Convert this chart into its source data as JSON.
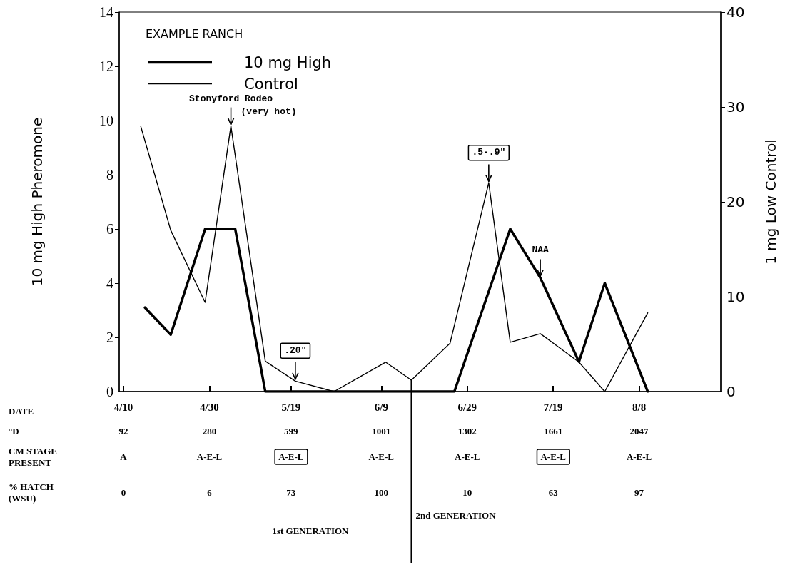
{
  "chart_data": {
    "type": "line",
    "title": "EXAMPLE RANCH",
    "ylabel": "10 mg High Pheromone",
    "y2label": "1 mg Low Control",
    "xlim": [
      "--04-09",
      "--08-27"
    ],
    "xticks": [
      {
        "value": "--04-10",
        "label": "4/10"
      },
      {
        "value": "--04-30",
        "label": "4/30"
      },
      {
        "value": "--05-19",
        "label": "5/19"
      },
      {
        "value": "--06-09",
        "label": "6/9"
      },
      {
        "value": "--06-29",
        "label": "6/29"
      },
      {
        "value": "--07-19",
        "label": "7/19"
      },
      {
        "value": "--08-08",
        "label": "8/8"
      }
    ],
    "ylim": [
      0,
      14
    ],
    "yticks": [
      0,
      2,
      4,
      6,
      8,
      10,
      12,
      14
    ],
    "y2lim": [
      0,
      40
    ],
    "y2ticks": [
      0,
      10,
      20,
      30,
      40
    ],
    "series": [
      {
        "name": "10 mg High",
        "color": "#000000",
        "x": [
          "--04-15",
          "--04-21",
          "--04-29",
          "--05-06",
          "--05-13",
          "--06-26",
          "--07-09",
          "--07-16",
          "--07-25",
          "--07-31",
          "--08-10"
        ],
        "values": [
          3.1,
          2.1,
          6,
          6,
          0,
          0,
          6,
          4.2,
          1.1,
          4,
          0
        ]
      },
      {
        "name": "Control",
        "color": "#000000",
        "axis": "y2",
        "x": [
          "--04-14",
          "--04-21",
          "--04-29",
          "--05-05",
          "--05-13",
          "--05-20",
          "--05-29",
          "--06-10",
          "--06-16",
          "--06-25",
          "--07-04",
          "--07-09",
          "--07-16",
          "--07-25",
          "--07-31",
          "--08-10"
        ],
        "values": [
          28,
          17,
          9.4,
          28,
          3.2,
          1.1,
          0,
          3.1,
          1.2,
          5.1,
          22,
          5.2,
          6.1,
          3.1,
          0,
          8.3
        ]
      }
    ],
    "ref_lines": [
      {
        "axis": "x",
        "value": "--06-16",
        "label": "2nd GENERATION"
      }
    ],
    "annotations": [
      {
        "text": "Stonyford Rodeo\n(very hot)",
        "x": "--05-05",
        "y": 9.8
      },
      {
        "text": ".20\"",
        "x": "--05-20",
        "y": 0.4
      },
      {
        "text": ".5-.9\"",
        "x": "--07-04",
        "y": 7.7
      },
      {
        "text": "NAA",
        "x": "--07-16",
        "y": 4.2
      },
      "DATE",
      "°D",
      "92",
      "280",
      "599",
      "1001",
      "1302",
      "1661",
      "2047",
      "CM STAGE\nPRESENT",
      "A",
      "A-E-L",
      "A-E-L",
      "A-E-L",
      "A-E-L",
      "A-E-L",
      "A-E-L",
      "% HATCH\n(WSU)",
      "0",
      "6",
      "73",
      "100",
      "10",
      "63",
      "97",
      "1st GENERATION"
    ],
    "legend": "top left",
    "grid": false,
    "marker": "none",
    "line_style": "solid"
  }
}
